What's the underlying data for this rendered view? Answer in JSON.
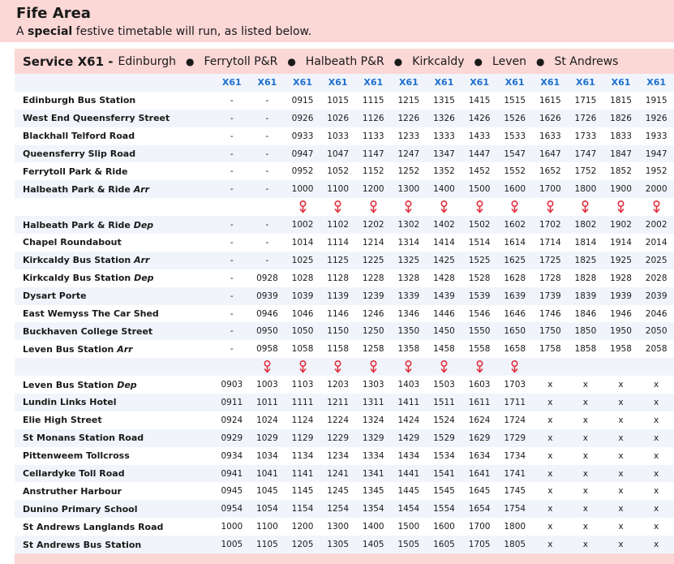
{
  "area_title": "Fife Area",
  "subtitle": {
    "pre": "A ",
    "bold": "special",
    "post": " festive timetable will run, as listed below."
  },
  "service": {
    "name": "Service X61 -",
    "stops": [
      "Edinburgh",
      "Ferrytoll P&R",
      "Halbeath P&R",
      "Kirkcaldy",
      "Leven",
      "St Andrews"
    ]
  },
  "headers": [
    "X61",
    "X61",
    "X61",
    "X61",
    "X61",
    "X61",
    "X61",
    "X61",
    "X61",
    "X61",
    "X61",
    "X61",
    "X61"
  ],
  "rows": [
    {
      "stop": "Edinburgh Bus Station",
      "times": [
        "-",
        "-",
        "0915",
        "1015",
        "1115",
        "1215",
        "1315",
        "1415",
        "1515",
        "1615",
        "1715",
        "1815",
        "1915"
      ]
    },
    {
      "stop": "West End Queensferry Street",
      "times": [
        "-",
        "-",
        "0926",
        "1026",
        "1126",
        "1226",
        "1326",
        "1426",
        "1526",
        "1626",
        "1726",
        "1826",
        "1926"
      ]
    },
    {
      "stop": "Blackhall Telford Road",
      "times": [
        "-",
        "-",
        "0933",
        "1033",
        "1133",
        "1233",
        "1333",
        "1433",
        "1533",
        "1633",
        "1733",
        "1833",
        "1933"
      ]
    },
    {
      "stop": "Queensferry Slip Road",
      "times": [
        "-",
        "-",
        "0947",
        "1047",
        "1147",
        "1247",
        "1347",
        "1447",
        "1547",
        "1647",
        "1747",
        "1847",
        "1947"
      ]
    },
    {
      "stop": "Ferrytoll Park & Ride",
      "times": [
        "-",
        "-",
        "0952",
        "1052",
        "1152",
        "1252",
        "1352",
        "1452",
        "1552",
        "1652",
        "1752",
        "1852",
        "1952"
      ]
    },
    {
      "stop": "Halbeath Park & Ride",
      "tag": "Arr",
      "times": [
        "-",
        "-",
        "1000",
        "1100",
        "1200",
        "1300",
        "1400",
        "1500",
        "1600",
        "1700",
        "1800",
        "1900",
        "2000"
      ]
    },
    {
      "arrows": [
        false,
        false,
        true,
        true,
        true,
        true,
        true,
        true,
        true,
        true,
        true,
        true,
        true
      ]
    },
    {
      "stop": "Halbeath Park & Ride",
      "tag": "Dep",
      "times": [
        "-",
        "-",
        "1002",
        "1102",
        "1202",
        "1302",
        "1402",
        "1502",
        "1602",
        "1702",
        "1802",
        "1902",
        "2002"
      ]
    },
    {
      "stop": "Chapel Roundabout",
      "times": [
        "-",
        "-",
        "1014",
        "1114",
        "1214",
        "1314",
        "1414",
        "1514",
        "1614",
        "1714",
        "1814",
        "1914",
        "2014"
      ]
    },
    {
      "stop": "Kirkcaldy Bus Station",
      "tag": "Arr",
      "times": [
        "-",
        "-",
        "1025",
        "1125",
        "1225",
        "1325",
        "1425",
        "1525",
        "1625",
        "1725",
        "1825",
        "1925",
        "2025"
      ]
    },
    {
      "stop": "Kirkcaldy Bus Station",
      "tag": "Dep",
      "times": [
        "-",
        "0928",
        "1028",
        "1128",
        "1228",
        "1328",
        "1428",
        "1528",
        "1628",
        "1728",
        "1828",
        "1928",
        "2028"
      ]
    },
    {
      "stop": "Dysart Porte",
      "times": [
        "-",
        "0939",
        "1039",
        "1139",
        "1239",
        "1339",
        "1439",
        "1539",
        "1639",
        "1739",
        "1839",
        "1939",
        "2039"
      ]
    },
    {
      "stop": "East Wemyss The Car Shed",
      "times": [
        "-",
        "0946",
        "1046",
        "1146",
        "1246",
        "1346",
        "1446",
        "1546",
        "1646",
        "1746",
        "1846",
        "1946",
        "2046"
      ]
    },
    {
      "stop": "Buckhaven College Street",
      "times": [
        "-",
        "0950",
        "1050",
        "1150",
        "1250",
        "1350",
        "1450",
        "1550",
        "1650",
        "1750",
        "1850",
        "1950",
        "2050"
      ]
    },
    {
      "stop": "Leven Bus Station",
      "tag": "Arr",
      "times": [
        "-",
        "0958",
        "1058",
        "1158",
        "1258",
        "1358",
        "1458",
        "1558",
        "1658",
        "1758",
        "1858",
        "1958",
        "2058"
      ]
    },
    {
      "arrows": [
        false,
        true,
        true,
        true,
        true,
        true,
        true,
        true,
        true,
        false,
        false,
        false,
        false
      ]
    },
    {
      "stop": "Leven Bus Station",
      "tag": "Dep",
      "times": [
        "0903",
        "1003",
        "1103",
        "1203",
        "1303",
        "1403",
        "1503",
        "1603",
        "1703",
        "x",
        "x",
        "x",
        "x"
      ]
    },
    {
      "stop": "Lundin Links Hotel",
      "times": [
        "0911",
        "1011",
        "1111",
        "1211",
        "1311",
        "1411",
        "1511",
        "1611",
        "1711",
        "x",
        "x",
        "x",
        "x"
      ]
    },
    {
      "stop": "Elie High Street",
      "times": [
        "0924",
        "1024",
        "1124",
        "1224",
        "1324",
        "1424",
        "1524",
        "1624",
        "1724",
        "x",
        "x",
        "x",
        "x"
      ]
    },
    {
      "stop": "St Monans Station Road",
      "times": [
        "0929",
        "1029",
        "1129",
        "1229",
        "1329",
        "1429",
        "1529",
        "1629",
        "1729",
        "x",
        "x",
        "x",
        "x"
      ]
    },
    {
      "stop": "Pittenweem Tollcross",
      "times": [
        "0934",
        "1034",
        "1134",
        "1234",
        "1334",
        "1434",
        "1534",
        "1634",
        "1734",
        "x",
        "x",
        "x",
        "x"
      ]
    },
    {
      "stop": "Cellardyke Toll Road",
      "times": [
        "0941",
        "1041",
        "1141",
        "1241",
        "1341",
        "1441",
        "1541",
        "1641",
        "1741",
        "x",
        "x",
        "x",
        "x"
      ]
    },
    {
      "stop": "Anstruther Harbour",
      "times": [
        "0945",
        "1045",
        "1145",
        "1245",
        "1345",
        "1445",
        "1545",
        "1645",
        "1745",
        "x",
        "x",
        "x",
        "x"
      ]
    },
    {
      "stop": "Dunino Primary School",
      "times": [
        "0954",
        "1054",
        "1154",
        "1254",
        "1354",
        "1454",
        "1554",
        "1654",
        "1754",
        "x",
        "x",
        "x",
        "x"
      ]
    },
    {
      "stop": "St Andrews Langlands Road",
      "times": [
        "1000",
        "1100",
        "1200",
        "1300",
        "1400",
        "1500",
        "1600",
        "1700",
        "1800",
        "x",
        "x",
        "x",
        "x"
      ]
    },
    {
      "stop": "St Andrews Bus Station",
      "times": [
        "1005",
        "1105",
        "1205",
        "1305",
        "1405",
        "1505",
        "1605",
        "1705",
        "1805",
        "x",
        "x",
        "x",
        "x"
      ]
    }
  ],
  "colors": {
    "banner": "#fbd7d6",
    "stripe": "#f1f5fb",
    "header_text": "#1c6fd1",
    "arrow": "#e0303f"
  },
  "icons": {
    "connection": "down-arrow-icon"
  }
}
